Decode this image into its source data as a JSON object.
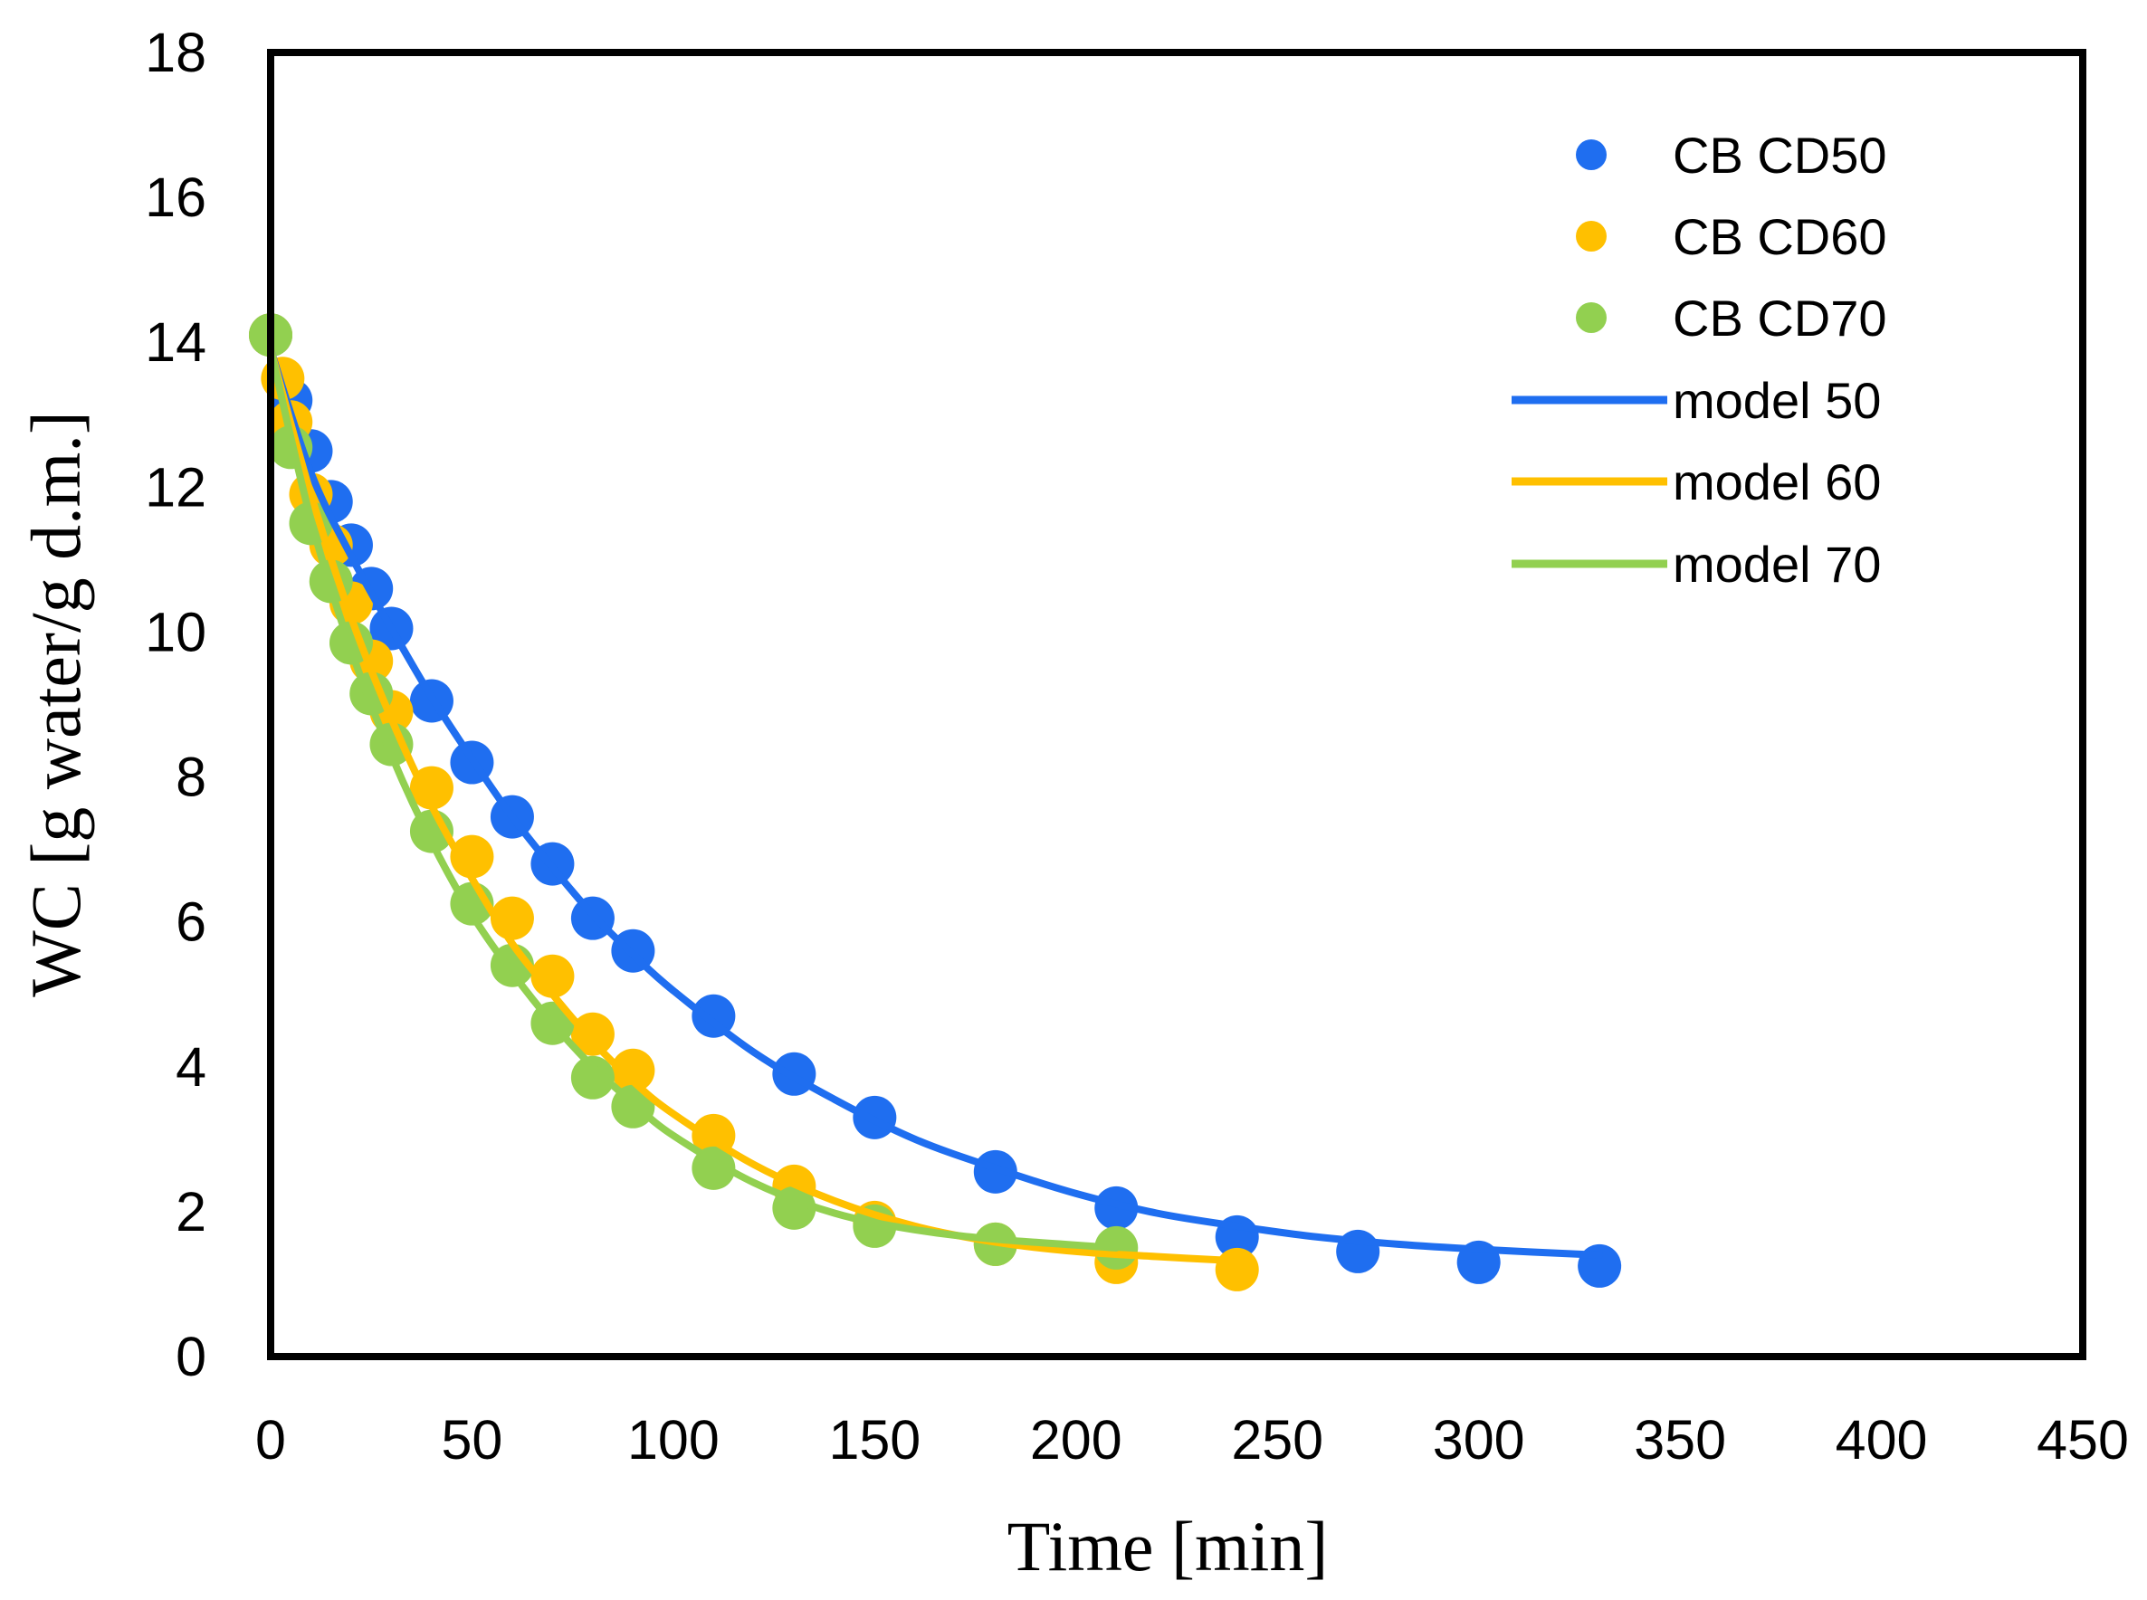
{
  "chart_data": {
    "type": "scatter",
    "title": "",
    "xlabel": "Time [min]",
    "ylabel": "WC [g water/g d.m.]",
    "xlim": [
      0,
      450
    ],
    "ylim": [
      0,
      18
    ],
    "xticks": [
      0,
      50,
      100,
      150,
      200,
      250,
      300,
      350,
      400,
      450
    ],
    "yticks": [
      0,
      2,
      4,
      6,
      8,
      10,
      12,
      14,
      16,
      18
    ],
    "grid": false,
    "legend_position": "top-right",
    "series": [
      {
        "name": "CB CD50",
        "kind": "points",
        "color": "#1f6ef0",
        "x": [
          0,
          5,
          10,
          15,
          20,
          25,
          30,
          40,
          50,
          60,
          70,
          80,
          90,
          110,
          130,
          150,
          180,
          210,
          240,
          270,
          300,
          330
        ],
        "y": [
          14.1,
          13.2,
          12.5,
          11.8,
          11.2,
          10.6,
          10.05,
          9.05,
          8.2,
          7.45,
          6.8,
          6.05,
          5.6,
          4.7,
          3.9,
          3.3,
          2.55,
          2.05,
          1.65,
          1.45,
          1.3,
          1.25
        ]
      },
      {
        "name": "CB CD60",
        "kind": "points",
        "color": "#ffc000",
        "x": [
          0,
          3,
          5,
          10,
          15,
          20,
          25,
          30,
          40,
          50,
          60,
          70,
          80,
          90,
          110,
          130,
          150,
          180,
          210,
          240
        ],
        "y": [
          14.1,
          13.5,
          12.9,
          11.9,
          11.2,
          10.4,
          9.6,
          8.9,
          7.85,
          6.9,
          6.05,
          5.25,
          4.45,
          3.95,
          3.05,
          2.35,
          1.85,
          1.55,
          1.3,
          1.2
        ]
      },
      {
        "name": "CB CD70",
        "kind": "points",
        "color": "#92d050",
        "x": [
          0,
          5,
          10,
          15,
          20,
          25,
          30,
          40,
          50,
          60,
          70,
          80,
          90,
          110,
          130,
          150,
          180,
          210
        ],
        "y": [
          14.1,
          12.55,
          11.5,
          10.7,
          9.85,
          9.15,
          8.45,
          7.25,
          6.25,
          5.4,
          4.6,
          3.85,
          3.45,
          2.6,
          2.05,
          1.8,
          1.55,
          1.5
        ]
      },
      {
        "name": "model 50",
        "kind": "line",
        "color": "#1f6ef0",
        "x": [
          0,
          10,
          20,
          30,
          40,
          50,
          60,
          70,
          80,
          90,
          100,
          120,
          140,
          160,
          180,
          200,
          220,
          240,
          260,
          280,
          300,
          330
        ],
        "y": [
          13.9,
          12.2,
          11.05,
          10.05,
          9.1,
          8.25,
          7.45,
          6.75,
          6.1,
          5.55,
          5.05,
          4.2,
          3.55,
          3.0,
          2.6,
          2.25,
          1.98,
          1.8,
          1.65,
          1.55,
          1.48,
          1.4
        ]
      },
      {
        "name": "model 60",
        "kind": "line",
        "color": "#ffc000",
        "x": [
          0,
          10,
          20,
          30,
          40,
          50,
          60,
          70,
          80,
          90,
          100,
          120,
          140,
          160,
          180,
          200,
          220,
          240
        ],
        "y": [
          13.9,
          11.9,
          10.2,
          8.8,
          7.6,
          6.6,
          5.7,
          5.0,
          4.35,
          3.8,
          3.35,
          2.65,
          2.15,
          1.8,
          1.58,
          1.45,
          1.38,
          1.32
        ]
      },
      {
        "name": "model 70",
        "kind": "line",
        "color": "#92d050",
        "x": [
          0,
          10,
          20,
          30,
          40,
          50,
          60,
          70,
          80,
          90,
          100,
          120,
          140,
          160,
          180,
          210
        ],
        "y": [
          13.9,
          11.55,
          9.75,
          8.3,
          7.1,
          6.1,
          5.3,
          4.6,
          4.0,
          3.5,
          3.05,
          2.4,
          1.98,
          1.75,
          1.62,
          1.5
        ]
      }
    ]
  }
}
